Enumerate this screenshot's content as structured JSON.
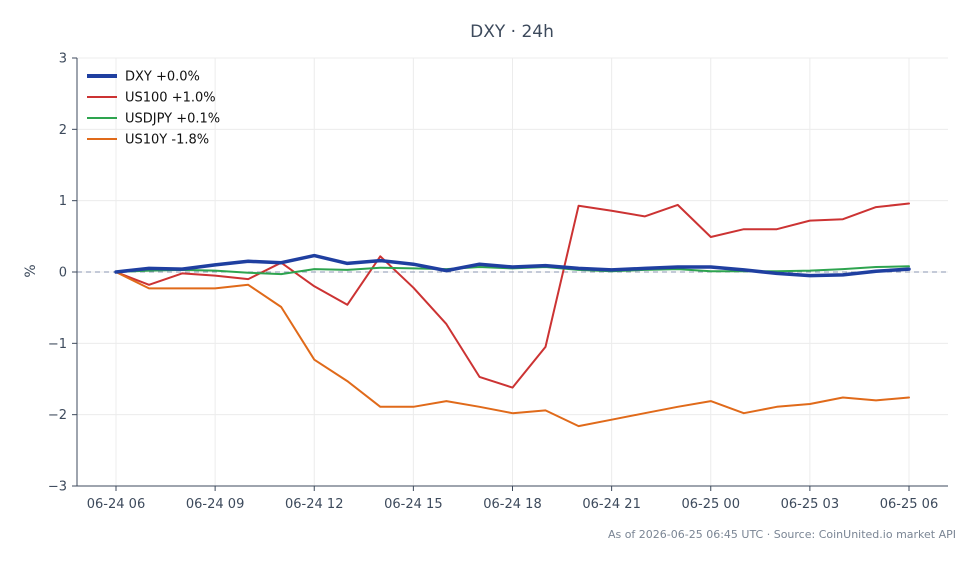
{
  "chart_data": {
    "type": "line",
    "title": "DXY · 24h",
    "xlabel": "",
    "ylabel": "%",
    "ylim": [
      -3,
      3
    ],
    "yticks": [
      3,
      2,
      1,
      0,
      -1,
      -2,
      -3
    ],
    "ytick_labels": [
      "3",
      "2",
      "1",
      "0",
      "−1",
      "−2",
      "−3"
    ],
    "xtick_labels": [
      "06-24 06",
      "06-24 09",
      "06-24 12",
      "06-24 15",
      "06-24 18",
      "06-24 21",
      "06-25 00",
      "06-25 03",
      "06-25 06"
    ],
    "x": [
      "06-24 06",
      "06-24 07",
      "06-24 08",
      "06-24 09",
      "06-24 10",
      "06-24 11",
      "06-24 12",
      "06-24 13",
      "06-24 14",
      "06-24 15",
      "06-24 16",
      "06-24 17",
      "06-24 18",
      "06-24 19",
      "06-24 20",
      "06-24 21",
      "06-24 22",
      "06-24 23",
      "06-25 00",
      "06-25 01",
      "06-25 02",
      "06-25 03",
      "06-25 04",
      "06-25 05",
      "06-25 06"
    ],
    "grid": true,
    "legend_position": "top-left",
    "series": [
      {
        "name": "DXY +0.0%",
        "color": "#1f3fa0",
        "values": [
          0.0,
          0.05,
          0.04,
          0.1,
          0.15,
          0.13,
          0.23,
          0.12,
          0.16,
          0.11,
          0.02,
          0.11,
          0.07,
          0.09,
          0.05,
          0.03,
          0.05,
          0.07,
          0.07,
          0.03,
          -0.02,
          -0.05,
          -0.04,
          0.01,
          0.04
        ]
      },
      {
        "name": "US100 +1.0%",
        "color": "#cc3333",
        "values": [
          0.0,
          -0.18,
          -0.02,
          -0.05,
          -0.1,
          0.13,
          -0.2,
          -0.46,
          0.22,
          -0.22,
          -0.73,
          -1.47,
          -1.62,
          -1.05,
          0.93,
          0.86,
          0.78,
          0.94,
          0.49,
          0.6,
          0.6,
          0.72,
          0.74,
          0.91,
          0.96
        ]
      },
      {
        "name": "USDJPY +0.1%",
        "color": "#2ea44f",
        "values": [
          0.0,
          0.02,
          0.03,
          0.02,
          -0.01,
          -0.03,
          0.04,
          0.03,
          0.06,
          0.05,
          0.04,
          0.07,
          0.05,
          0.07,
          0.03,
          0.01,
          0.03,
          0.04,
          0.01,
          0.01,
          0.01,
          0.02,
          0.04,
          0.07,
          0.08
        ]
      },
      {
        "name": "US10Y -1.8%",
        "color": "#e06a1a",
        "values": [
          0.0,
          -0.23,
          -0.23,
          -0.23,
          -0.18,
          -0.49,
          -1.23,
          -1.53,
          -1.89,
          -1.89,
          -1.81,
          -1.89,
          -1.98,
          -1.94,
          -2.16,
          -2.07,
          -1.98,
          -1.89,
          -1.81,
          -1.98,
          -1.89,
          -1.85,
          -1.76,
          -1.8,
          -1.76
        ]
      }
    ],
    "zero_line": true
  },
  "footer": "As of 2026-06-25 06:45 UTC · Source: CoinUnited.io market API"
}
